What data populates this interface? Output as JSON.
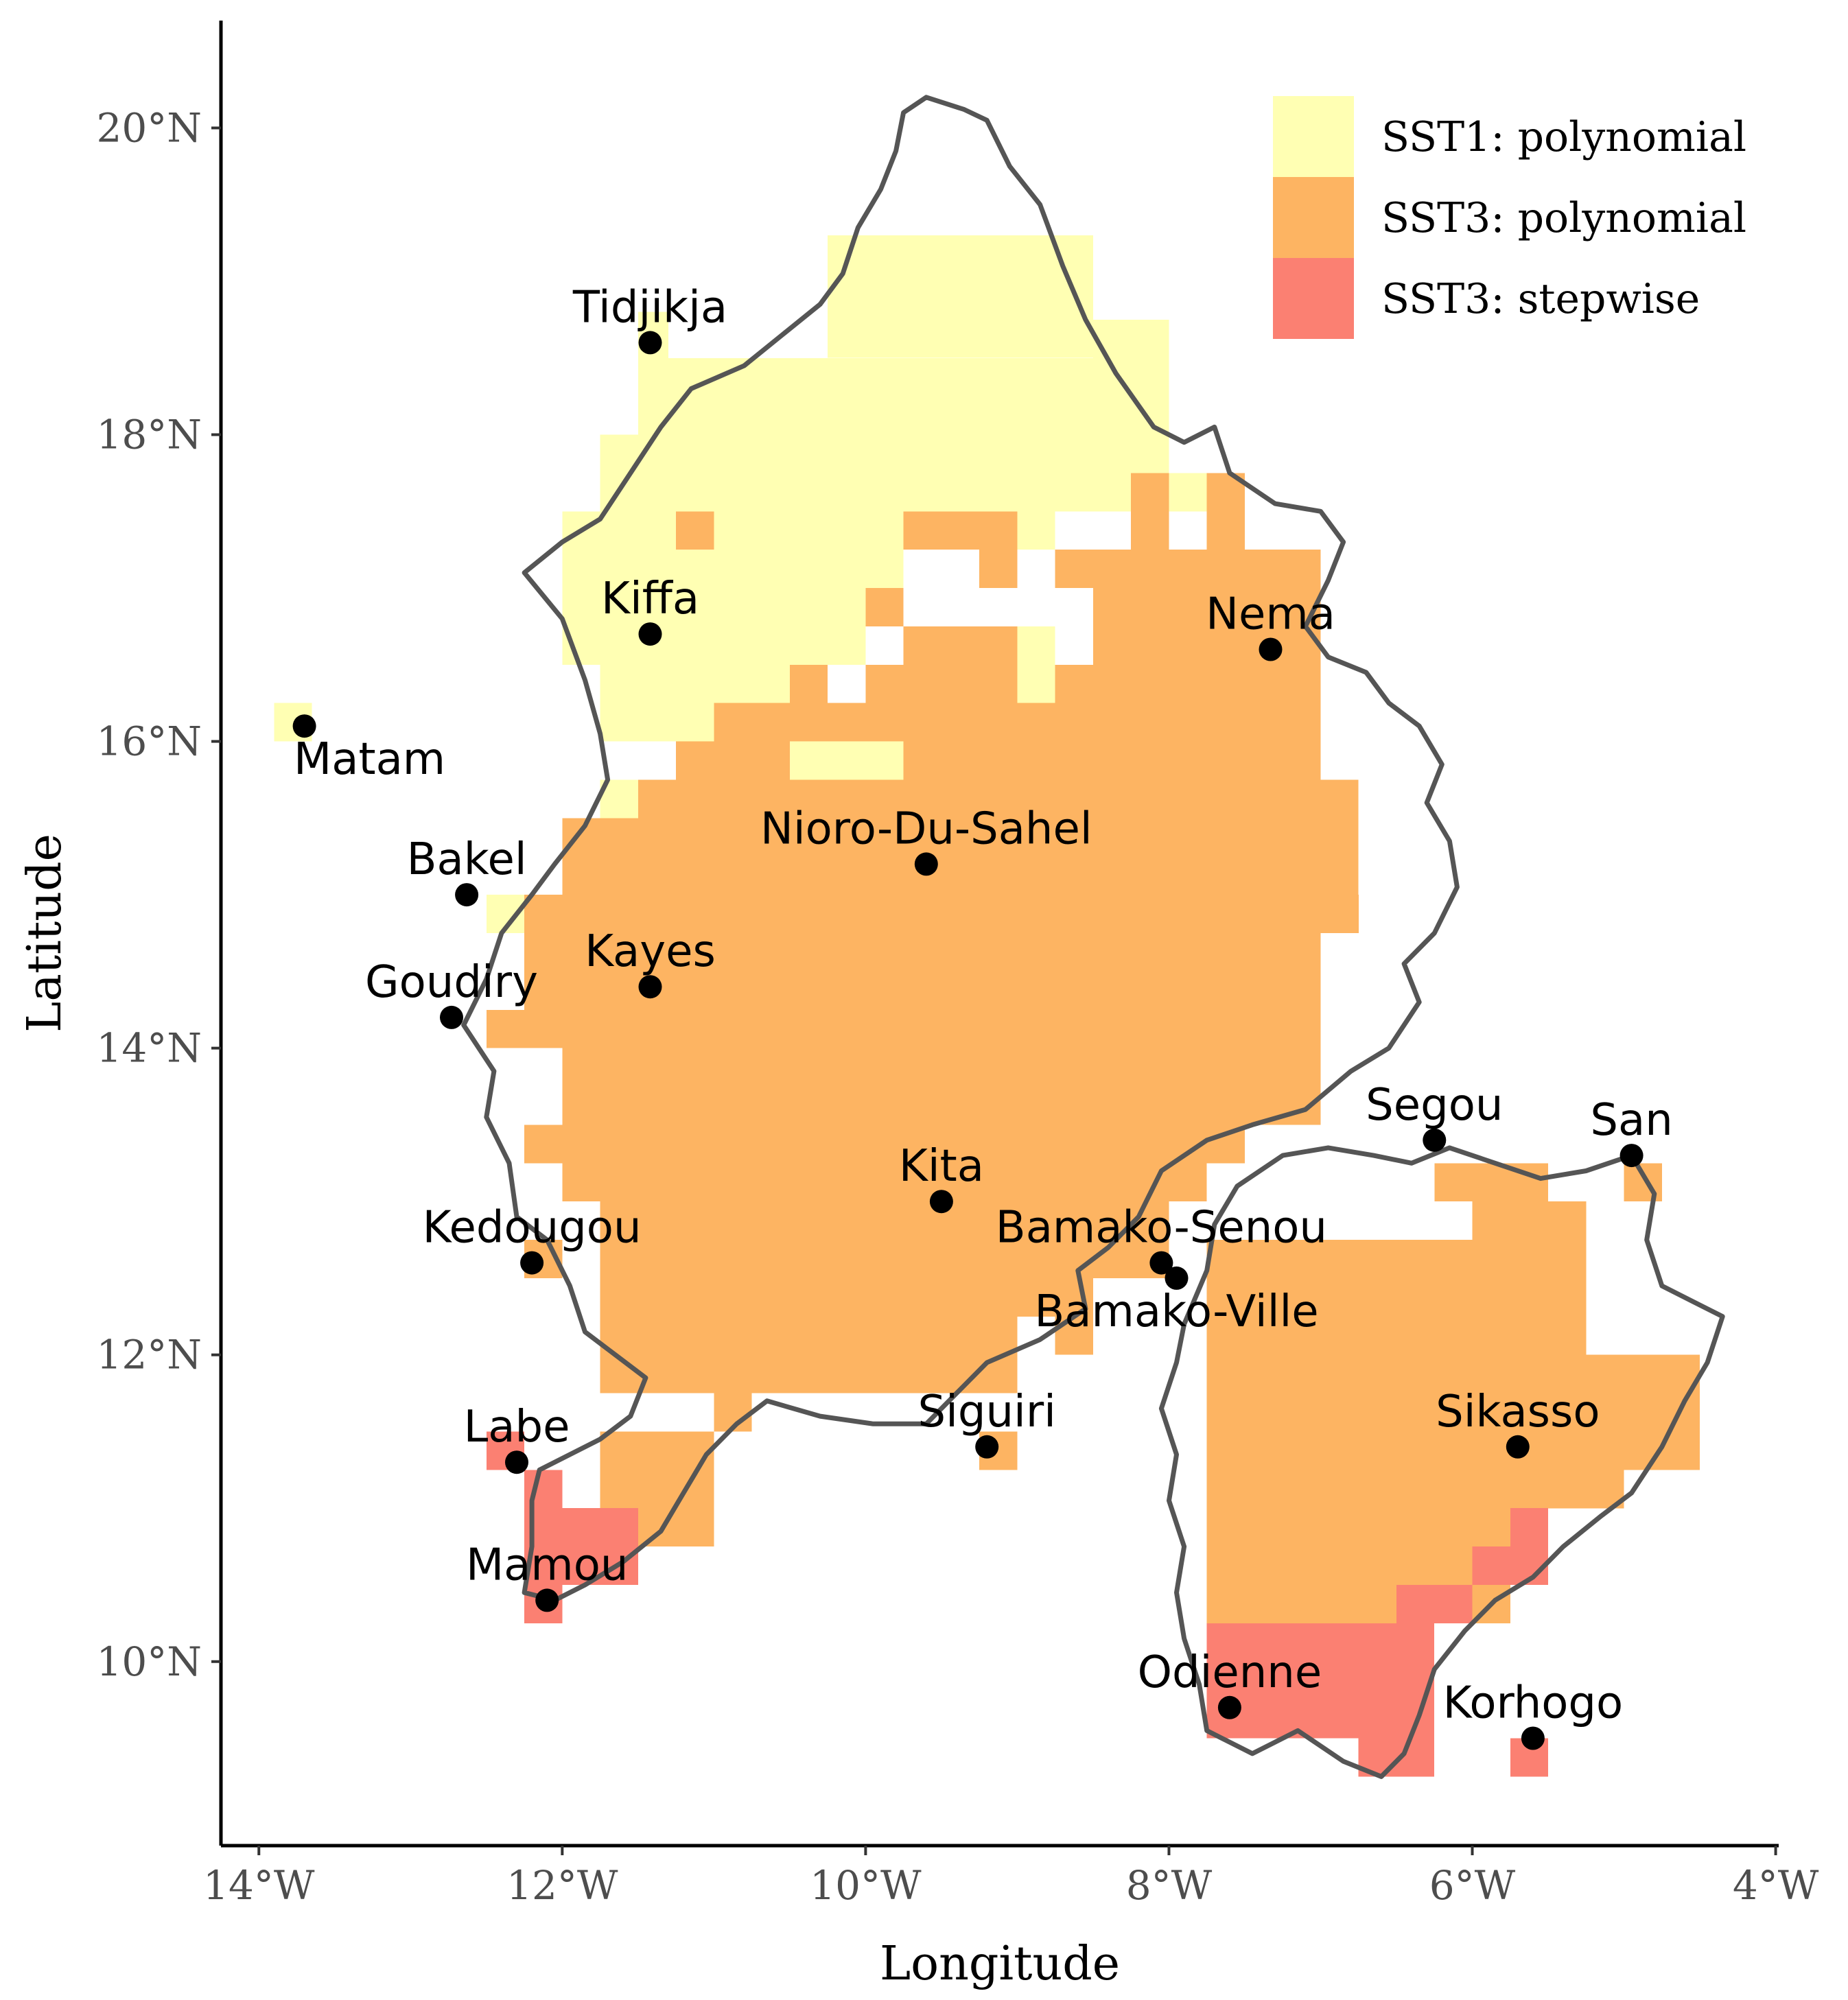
{
  "axes": {
    "x_title": "Longitude",
    "y_title": "Latitude",
    "x_ticks": [
      {
        "value": -14,
        "label": "14°W"
      },
      {
        "value": -12,
        "label": "12°W"
      },
      {
        "value": -10,
        "label": "10°W"
      },
      {
        "value": -8,
        "label": "8°W"
      },
      {
        "value": -6,
        "label": "6°W"
      },
      {
        "value": -4,
        "label": "4°W"
      }
    ],
    "y_ticks": [
      {
        "value": 10,
        "label": "10°N"
      },
      {
        "value": 12,
        "label": "12°N"
      },
      {
        "value": 14,
        "label": "14°N"
      },
      {
        "value": 16,
        "label": "16°N"
      },
      {
        "value": 18,
        "label": "18°N"
      },
      {
        "value": 20,
        "label": "20°N"
      }
    ],
    "xlim": [
      -14.25,
      -3.98
    ],
    "ylim": [
      8.8,
      20.7
    ]
  },
  "legend": {
    "placement": "top-right",
    "items": [
      {
        "label": "SST1: polynomial",
        "color": "#FFFFB3"
      },
      {
        "label": "SST3: polynomial",
        "color": "#FDB462"
      },
      {
        "label": "SST3: stepwise",
        "color": "#FB8072"
      }
    ]
  },
  "chart_data": {
    "type": "map",
    "grid_cell_deg": 0.25,
    "boundary_color": "#555555",
    "cells": [
      {
        "label": "SST1: polynomial",
        "color": "#FFFFB3",
        "rects": [
          [
            -10.25,
            -9.5,
            18.5,
            19.3
          ],
          [
            -9.5,
            -8.5,
            18.5,
            19.3
          ],
          [
            -8.5,
            -8.0,
            18.25,
            18.75
          ],
          [
            -11.5,
            -8.0,
            18.0,
            18.5
          ],
          [
            -11.75,
            -8.0,
            17.75,
            18.0
          ],
          [
            -11.75,
            -7.5,
            17.5,
            17.75
          ],
          [
            -12.0,
            -10.25,
            17.0,
            17.5
          ],
          [
            -10.25,
            -9.75,
            17.0,
            17.5
          ],
          [
            -9.25,
            -8.75,
            17.25,
            17.5
          ],
          [
            -8.75,
            -8.5,
            17.0,
            17.25
          ],
          [
            -12.0,
            -10.0,
            16.5,
            17.0
          ],
          [
            -9.0,
            -8.75,
            16.25,
            16.75
          ],
          [
            -11.75,
            -10.5,
            16.25,
            16.5
          ],
          [
            -11.75,
            -11.0,
            16.0,
            16.25
          ],
          [
            -10.5,
            -9.75,
            15.75,
            16.0
          ],
          [
            -11.75,
            -11.25,
            15.5,
            15.75
          ],
          [
            -12.5,
            -12.25,
            14.75,
            15.0
          ],
          [
            -13.9,
            -13.65,
            16.0,
            16.25
          ],
          [
            -11.5,
            -11.3,
            18.5,
            18.8
          ]
        ]
      },
      {
        "label": "SST3: polynomial",
        "color": "#FDB462",
        "rects": [
          [
            -11.25,
            -11.0,
            17.25,
            17.5
          ],
          [
            -9.75,
            -9.0,
            17.25,
            17.5
          ],
          [
            -8.25,
            -8.0,
            17.25,
            17.75
          ],
          [
            -7.75,
            -7.5,
            17.25,
            17.75
          ],
          [
            -9.25,
            -9.0,
            17.0,
            17.25
          ],
          [
            -8.75,
            -7.0,
            17.0,
            17.25
          ],
          [
            -10.0,
            -9.75,
            16.75,
            17.0
          ],
          [
            -9.75,
            -9.0,
            16.5,
            16.75
          ],
          [
            -8.5,
            -7.0,
            16.5,
            17.0
          ],
          [
            -10.0,
            -9.0,
            16.25,
            16.5
          ],
          [
            -8.75,
            -7.0,
            16.25,
            16.5
          ],
          [
            -10.5,
            -10.25,
            16.0,
            16.5
          ],
          [
            -11.0,
            -7.0,
            16.0,
            16.25
          ],
          [
            -11.25,
            -10.5,
            15.75,
            16.0
          ],
          [
            -9.75,
            -7.0,
            15.75,
            16.0
          ],
          [
            -11.5,
            -6.75,
            15.5,
            15.75
          ],
          [
            -12.0,
            -6.75,
            15.0,
            15.5
          ],
          [
            -12.25,
            -6.75,
            14.75,
            15.0
          ],
          [
            -12.25,
            -7.0,
            14.0,
            14.75
          ],
          [
            -12.5,
            -12.25,
            14.0,
            14.25
          ],
          [
            -12.0,
            -7.0,
            13.5,
            14.0
          ],
          [
            -12.25,
            -7.5,
            13.25,
            13.5
          ],
          [
            -12.0,
            -7.75,
            13.0,
            13.25
          ],
          [
            -11.75,
            -8.0,
            12.5,
            13.0
          ],
          [
            -11.75,
            -8.75,
            12.25,
            12.5
          ],
          [
            -8.75,
            -8.5,
            12.0,
            12.5
          ],
          [
            -11.75,
            -9.0,
            11.75,
            12.25
          ],
          [
            -12.25,
            -12.0,
            12.5,
            12.75
          ],
          [
            -11.0,
            -10.75,
            11.5,
            11.75
          ],
          [
            -9.25,
            -9.0,
            11.25,
            11.5
          ],
          [
            -11.75,
            -11.0,
            10.75,
            11.5
          ],
          [
            -7.75,
            -6.0,
            12.0,
            12.75
          ],
          [
            -6.0,
            -5.25,
            12.0,
            13.0
          ],
          [
            -6.25,
            -5.5,
            13.0,
            13.25
          ],
          [
            -5.0,
            -4.75,
            13.0,
            13.25
          ],
          [
            -7.75,
            -4.5,
            11.25,
            12.0
          ],
          [
            -7.75,
            -5.0,
            11.0,
            11.25
          ],
          [
            -7.75,
            -5.5,
            10.5,
            11.0
          ],
          [
            -7.75,
            -6.25,
            10.0,
            10.5
          ],
          [
            -6.0,
            -5.75,
            10.25,
            10.5
          ],
          [
            -9.25,
            -9.0,
            11.25,
            11.5
          ]
        ]
      },
      {
        "label": "SST3: stepwise",
        "color": "#FB8072",
        "rects": [
          [
            -12.5,
            -12.25,
            11.25,
            11.5
          ],
          [
            -12.25,
            -12.0,
            11.0,
            11.25
          ],
          [
            -12.25,
            -11.5,
            10.5,
            11.0
          ],
          [
            -12.25,
            -12.0,
            10.25,
            10.5
          ],
          [
            -5.75,
            -5.5,
            10.75,
            11.0
          ],
          [
            -6.0,
            -5.5,
            10.5,
            10.75
          ],
          [
            -6.5,
            -6.0,
            10.25,
            10.5
          ],
          [
            -7.75,
            -6.25,
            10.0,
            10.25
          ],
          [
            -7.75,
            -6.25,
            9.5,
            10.0
          ],
          [
            -6.75,
            -6.25,
            9.25,
            9.5
          ],
          [
            -5.75,
            -5.5,
            9.25,
            9.5
          ]
        ]
      }
    ],
    "boundaries": [
      [
        [
          -9.75,
          20.1
        ],
        [
          -9.6,
          20.2
        ],
        [
          -9.35,
          20.12
        ],
        [
          -9.2,
          20.05
        ],
        [
          -9.05,
          19.75
        ],
        [
          -8.85,
          19.5
        ],
        [
          -8.7,
          19.1
        ],
        [
          -8.55,
          18.75
        ],
        [
          -8.35,
          18.4
        ],
        [
          -8.1,
          18.05
        ],
        [
          -7.9,
          17.95
        ],
        [
          -7.7,
          18.05
        ],
        [
          -7.6,
          17.75
        ],
        [
          -7.3,
          17.55
        ],
        [
          -7.0,
          17.5
        ],
        [
          -6.85,
          17.3
        ],
        [
          -6.95,
          17.05
        ],
        [
          -7.1,
          16.75
        ],
        [
          -6.95,
          16.55
        ],
        [
          -6.7,
          16.45
        ],
        [
          -6.55,
          16.25
        ],
        [
          -6.35,
          16.1
        ],
        [
          -6.2,
          15.85
        ],
        [
          -6.3,
          15.6
        ],
        [
          -6.15,
          15.35
        ],
        [
          -6.1,
          15.05
        ],
        [
          -6.25,
          14.75
        ],
        [
          -6.45,
          14.55
        ],
        [
          -6.35,
          14.3
        ],
        [
          -6.55,
          14.0
        ],
        [
          -6.8,
          13.85
        ],
        [
          -7.1,
          13.6
        ],
        [
          -7.45,
          13.5
        ],
        [
          -7.75,
          13.4
        ],
        [
          -8.05,
          13.2
        ],
        [
          -8.2,
          12.9
        ],
        [
          -8.4,
          12.7
        ],
        [
          -8.6,
          12.55
        ],
        [
          -8.55,
          12.3
        ],
        [
          -8.85,
          12.1
        ],
        [
          -9.2,
          11.95
        ],
        [
          -9.4,
          11.75
        ],
        [
          -9.6,
          11.55
        ],
        [
          -9.95,
          11.55
        ],
        [
          -10.3,
          11.6
        ],
        [
          -10.65,
          11.7
        ],
        [
          -10.85,
          11.55
        ],
        [
          -11.05,
          11.35
        ],
        [
          -11.2,
          11.1
        ],
        [
          -11.35,
          10.85
        ],
        [
          -11.6,
          10.65
        ],
        [
          -11.85,
          10.5
        ],
        [
          -12.05,
          10.4
        ],
        [
          -12.25,
          10.45
        ],
        [
          -12.2,
          10.75
        ],
        [
          -12.2,
          11.05
        ],
        [
          -12.15,
          11.25
        ],
        [
          -11.95,
          11.35
        ],
        [
          -11.75,
          11.45
        ],
        [
          -11.55,
          11.6
        ],
        [
          -11.45,
          11.85
        ],
        [
          -11.65,
          12.0
        ],
        [
          -11.85,
          12.15
        ],
        [
          -11.95,
          12.45
        ],
        [
          -12.1,
          12.75
        ],
        [
          -12.3,
          12.9
        ],
        [
          -12.35,
          13.25
        ],
        [
          -12.5,
          13.55
        ],
        [
          -12.45,
          13.85
        ],
        [
          -12.65,
          14.15
        ],
        [
          -12.5,
          14.45
        ],
        [
          -12.4,
          14.75
        ],
        [
          -12.2,
          15.0
        ],
        [
          -12.05,
          15.2
        ],
        [
          -11.85,
          15.45
        ],
        [
          -11.7,
          15.75
        ],
        [
          -11.75,
          16.05
        ],
        [
          -11.85,
          16.4
        ],
        [
          -12.0,
          16.8
        ],
        [
          -12.25,
          17.1
        ],
        [
          -12.0,
          17.3
        ],
        [
          -11.75,
          17.45
        ],
        [
          -11.55,
          17.75
        ],
        [
          -11.35,
          18.05
        ],
        [
          -11.15,
          18.3
        ],
        [
          -10.8,
          18.45
        ],
        [
          -10.55,
          18.65
        ],
        [
          -10.3,
          18.85
        ],
        [
          -10.15,
          19.05
        ],
        [
          -10.05,
          19.35
        ],
        [
          -9.9,
          19.6
        ],
        [
          -9.8,
          19.85
        ],
        [
          -9.75,
          20.1
        ]
      ],
      [
        [
          -7.9,
          12.2
        ],
        [
          -7.75,
          12.55
        ],
        [
          -7.7,
          12.85
        ],
        [
          -7.55,
          13.1
        ],
        [
          -7.25,
          13.3
        ],
        [
          -6.95,
          13.35
        ],
        [
          -6.65,
          13.3
        ],
        [
          -6.4,
          13.25
        ],
        [
          -6.15,
          13.35
        ],
        [
          -5.85,
          13.25
        ],
        [
          -5.55,
          13.15
        ],
        [
          -5.25,
          13.2
        ],
        [
          -4.95,
          13.3
        ],
        [
          -4.8,
          13.05
        ],
        [
          -4.85,
          12.75
        ],
        [
          -4.75,
          12.45
        ],
        [
          -4.55,
          12.35
        ],
        [
          -4.35,
          12.25
        ],
        [
          -4.45,
          11.95
        ],
        [
          -4.6,
          11.7
        ],
        [
          -4.75,
          11.4
        ],
        [
          -4.95,
          11.1
        ],
        [
          -5.15,
          10.95
        ],
        [
          -5.4,
          10.75
        ],
        [
          -5.6,
          10.55
        ],
        [
          -5.85,
          10.4
        ],
        [
          -6.05,
          10.2
        ],
        [
          -6.25,
          9.95
        ],
        [
          -6.35,
          9.65
        ],
        [
          -6.45,
          9.4
        ],
        [
          -6.6,
          9.25
        ],
        [
          -6.85,
          9.35
        ],
        [
          -7.15,
          9.55
        ],
        [
          -7.45,
          9.4
        ],
        [
          -7.75,
          9.55
        ],
        [
          -7.8,
          9.85
        ],
        [
          -7.9,
          10.15
        ],
        [
          -7.95,
          10.45
        ],
        [
          -7.9,
          10.75
        ],
        [
          -8.0,
          11.05
        ],
        [
          -7.95,
          11.35
        ],
        [
          -8.05,
          11.65
        ],
        [
          -7.95,
          11.95
        ],
        [
          -7.9,
          12.2
        ]
      ]
    ],
    "cities": [
      {
        "name": "Tidjikja",
        "lon": -11.42,
        "lat": 18.6,
        "dx": 0,
        "dy": -1
      },
      {
        "name": "Kiffa",
        "lon": -11.42,
        "lat": 16.7,
        "dx": 0,
        "dy": -1
      },
      {
        "name": "Nema",
        "lon": -7.33,
        "lat": 16.6,
        "dx": 0,
        "dy": -1
      },
      {
        "name": "Matam",
        "lon": -13.7,
        "lat": 16.1,
        "dx": 1,
        "dy": 1
      },
      {
        "name": "Nioro-Du-Sahel",
        "lon": -9.6,
        "lat": 15.2,
        "dx": 0,
        "dy": -1
      },
      {
        "name": "Bakel",
        "lon": -12.63,
        "lat": 15.0,
        "dx": 0,
        "dy": -1
      },
      {
        "name": "Kayes",
        "lon": -11.42,
        "lat": 14.4,
        "dx": 0,
        "dy": -1
      },
      {
        "name": "Goudiry",
        "lon": -12.73,
        "lat": 14.2,
        "dx": 0,
        "dy": -1
      },
      {
        "name": "Segou",
        "lon": -6.25,
        "lat": 13.4,
        "dx": 0,
        "dy": -1
      },
      {
        "name": "San",
        "lon": -4.95,
        "lat": 13.3,
        "dx": 0,
        "dy": -1
      },
      {
        "name": "Kita",
        "lon": -9.5,
        "lat": 13.0,
        "dx": 0,
        "dy": -1
      },
      {
        "name": "Kedougou",
        "lon": -12.2,
        "lat": 12.6,
        "dx": 0,
        "dy": -1
      },
      {
        "name": "Bamako-Senou",
        "lon": -8.05,
        "lat": 12.6,
        "dx": 0,
        "dy": -1
      },
      {
        "name": "Bamako-Ville",
        "lon": -7.95,
        "lat": 12.5,
        "dx": 0,
        "dy": 1
      },
      {
        "name": "Siguiri",
        "lon": -9.2,
        "lat": 11.4,
        "dx": 0,
        "dy": -1
      },
      {
        "name": "Sikasso",
        "lon": -5.7,
        "lat": 11.4,
        "dx": 0,
        "dy": -1
      },
      {
        "name": "Labe",
        "lon": -12.3,
        "lat": 11.3,
        "dx": 0,
        "dy": -1
      },
      {
        "name": "Mamou",
        "lon": -12.1,
        "lat": 10.4,
        "dx": 0,
        "dy": -1
      },
      {
        "name": "Odienne",
        "lon": -7.6,
        "lat": 9.7,
        "dx": 0,
        "dy": -1
      },
      {
        "name": "Korhogo",
        "lon": -5.6,
        "lat": 9.5,
        "dx": 0,
        "dy": -1
      }
    ]
  }
}
